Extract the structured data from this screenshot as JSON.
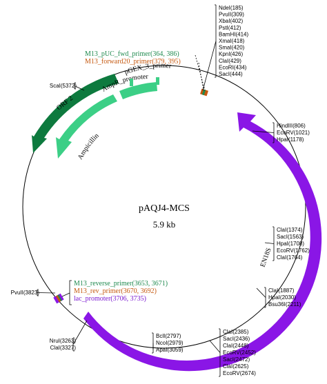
{
  "plasmid": {
    "name": "pAQJ4-MCS",
    "size": "5.9 kb"
  },
  "colors": {
    "orf2": "#0d7a3e",
    "ampr_promoter": "#3ccf86",
    "ampicillin": "#3ccf86",
    "pgex_primer": "#3ccf86",
    "fragment": "#8a16e6",
    "green_text": "#1f8a4f",
    "orange_text": "#c5580f",
    "purple_text": "#7a18d0",
    "backbone": "#000000"
  },
  "features": {
    "orf2": "ORF 2",
    "ampr_promoter": "AmpR_promoter",
    "ampicillin": "Ampicillin",
    "pgex_primer": "pGEX_3_primer",
    "fragment": "EN18S"
  },
  "primers_top": [
    {
      "text": "M13_pUC_fwd_primer(364, 386)",
      "color": "green"
    },
    {
      "text": "M13_forward20_primer(379, 395)",
      "color": "orange"
    }
  ],
  "primers_bottom": [
    {
      "text": "M13_reverse_primer(3653, 3671)",
      "color": "green"
    },
    {
      "text": "M13_rev_primer(3670, 3692)",
      "color": "orange"
    },
    {
      "text": "lac_promoter(3706, 3735)",
      "color": "purple"
    }
  ],
  "sites": {
    "mcs_top": [
      "NdeI(185)",
      "PvuII(309)",
      "XbaI(402)",
      "PstI(412)",
      "BamHI(414)",
      "XmaI(418)",
      "SmaI(420)",
      "KpnI(426)",
      "ClaI(429)",
      "EcoRI(434)",
      "SacI(444)"
    ],
    "right_upper": [
      "HindIII(806)",
      "EcoRV(1021)",
      "HpaI(1178)"
    ],
    "right_middle": [
      "ClaI(1374)",
      "SacI(1563)",
      "HpaI(1708)",
      "EcoRV(1762)",
      "ClaI(1764)"
    ],
    "right_lower": [
      "ClaI(1887)",
      "HpaI(2030)",
      "Bsu36I(2211)"
    ],
    "bottom_right": [
      "ClaI(2385)",
      "SacI(2436)",
      "ClaI(2448)",
      "EcoRV(2452)",
      "SacI(2472)",
      "ClaI(2625)",
      "EcoRV(2674)"
    ],
    "bottom_center": [
      "BclI(2797)",
      "NcoI(2979)",
      "ApaI(3059)"
    ],
    "bottom_left": [
      "NruI(3263)",
      "ClaI(3327)"
    ],
    "left": [
      "PvuII(3823)"
    ],
    "upper_left": [
      "ScaI(5372)"
    ]
  }
}
